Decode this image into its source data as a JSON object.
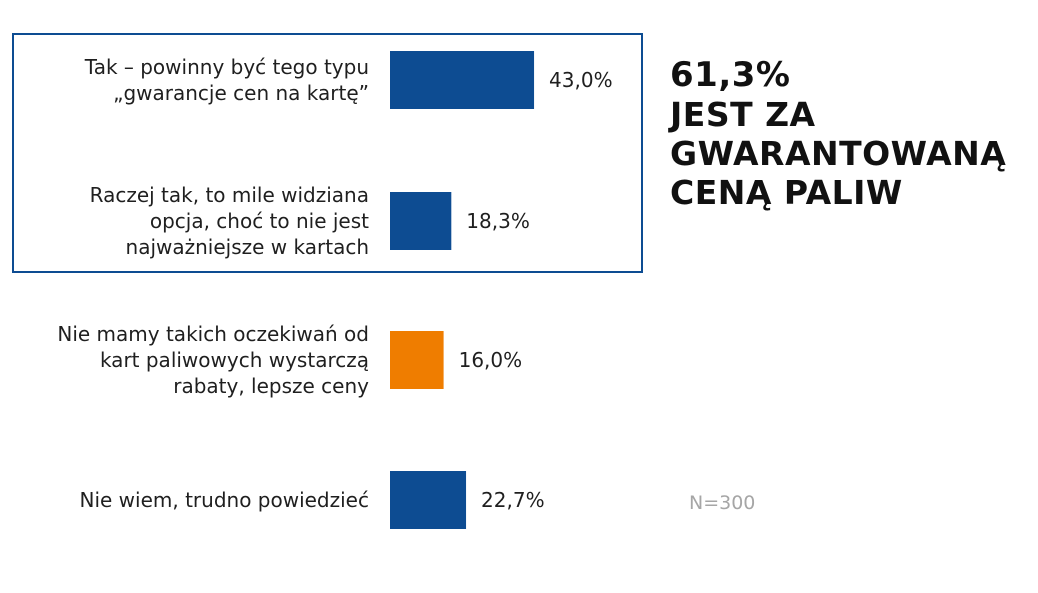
{
  "chart_data": {
    "type": "bar",
    "orientation": "horizontal",
    "categories": [
      [
        "Tak – powinny być tego typu",
        "„gwarancje cen na kartę”"
      ],
      [
        "Raczej tak, to mile widziana",
        "opcja, choć to nie jest",
        "najważniejsze w kartach"
      ],
      [
        "Nie mamy takich oczekiwań od",
        "kart paliwowych wystarczą",
        "rabaty, lepsze ceny"
      ],
      [
        "Nie wiem, trudno powiedzieć"
      ]
    ],
    "values": [
      43.0,
      18.3,
      16.0,
      22.7
    ],
    "value_labels": [
      "43,0%",
      "18,3%",
      "16,0%",
      "22,7%"
    ],
    "bar_colors": [
      "#0d4c92",
      "#0d4c92",
      "#ef7d00",
      "#0d4c92"
    ],
    "highlight_box_color": "#0d4c92",
    "highlighted_categories": [
      0,
      1
    ],
    "title": "",
    "xlabel": "",
    "ylabel": "",
    "xlim": [
      0,
      100
    ],
    "grid": false,
    "legend": "none"
  },
  "headline": {
    "percent": "61,3%",
    "lines": [
      "JEST ZA",
      "GWARANTOWANĄ",
      "CENĄ PALIW"
    ]
  },
  "sample_size": "N=300"
}
